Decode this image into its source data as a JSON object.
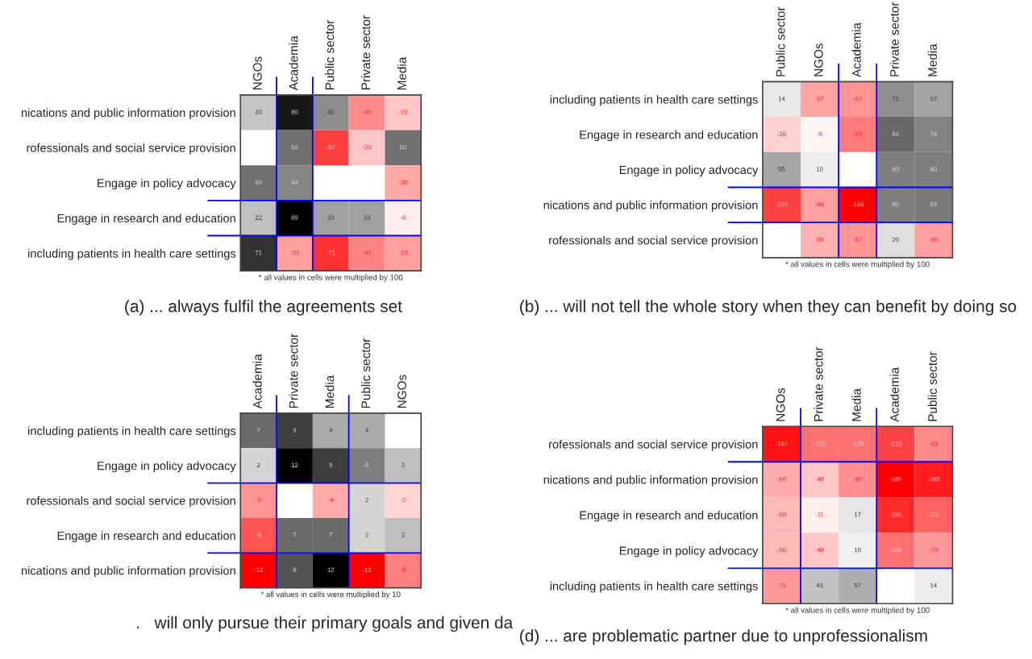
{
  "chart_data": [
    {
      "type": "heatmap",
      "title": "(a) ... always fulfil the agreements set",
      "categories": [
        "NGOs",
        "Academia",
        "Public sector",
        "Private sector",
        "Media"
      ],
      "y_categories": [
        "nications and public information provision",
        "rofessionals and social service provision",
        "Engage in policy advocacy",
        "Engage in research and education",
        "including patients in health care settings"
      ],
      "cells": [
        [
          20,
          80,
          40,
          -40,
          -20
        ],
        [
          null,
          50,
          -67,
          -20,
          50
        ],
        [
          50,
          42,
          null,
          null,
          -30
        ],
        [
          22,
          89,
          33,
          33,
          -6
        ],
        [
          71,
          -33,
          -71,
          -43,
          -33
        ]
      ],
      "data_labels": true,
      "annotations": [
        "* all values in cells were multiplied by 100"
      ]
    },
    {
      "type": "heatmap",
      "title": "(b) ... will not tell the whole story when they can benefit by doing so",
      "categories": [
        "Public sector",
        "NGOs",
        "Academia",
        "Private sector",
        "Media"
      ],
      "y_categories": [
        "including patients in health care settings",
        "Engage in research and education",
        "Engage in policy advocacy",
        "nications and public information provision",
        "rofessionals and social service provision"
      ],
      "cells": [
        [
          14,
          -57,
          -67,
          71,
          57
        ],
        [
          -28,
          -6,
          -83,
          94,
          78
        ],
        [
          55,
          10,
          null,
          80,
          80
        ],
        [
          -120,
          -60,
          -160,
          80,
          83
        ],
        [
          null,
          -50,
          -67,
          20,
          -60
        ]
      ],
      "data_labels": true,
      "annotations": [
        "* all values in cells were multiplied by 100"
      ]
    },
    {
      "type": "heatmap",
      "title": ".   will only pursue their primary goals and given da",
      "categories": [
        "Academia",
        "Private sector",
        "Media",
        "Public sector",
        "NGOs"
      ],
      "y_categories": [
        "including patients in health care settings",
        "Engage in policy advocacy",
        "rofessionals and social service provision",
        "Engage in research and education",
        "nications and public information provision"
      ],
      "cells": [
        [
          7,
          9,
          4,
          4,
          null
        ],
        [
          2,
          12,
          9,
          6,
          3
        ],
        [
          -5,
          null,
          -4,
          2,
          -2
        ],
        [
          -8,
          7,
          7,
          2,
          3
        ],
        [
          -12,
          8,
          12,
          -12,
          -6
        ]
      ],
      "data_labels": true,
      "annotations": [
        "* all values in cells were multiplied by 10"
      ]
    },
    {
      "type": "heatmap",
      "title": "(d) ... are problematic partner due to unprofessionalism",
      "categories": [
        "NGOs",
        "Private sector",
        "Media",
        "Academia",
        "Public sector"
      ],
      "y_categories": [
        "rofessionals and social service provision",
        "nications and public information provision",
        "Engage in research and education",
        "Engage in policy advocacy",
        "including patients in health care settings"
      ],
      "cells": [
        [
          -167,
          -100,
          -100,
          -133,
          -83
        ],
        [
          -60,
          -40,
          -80,
          -180,
          -160
        ],
        [
          -50,
          -11,
          17,
          -150,
          -111
        ],
        [
          -50,
          -40,
          10,
          -100,
          -73
        ],
        [
          -71,
          43,
          57,
          null,
          14
        ]
      ],
      "data_labels": true,
      "annotations": [
        "* all values in cells were multiplied by 100"
      ]
    }
  ]
}
